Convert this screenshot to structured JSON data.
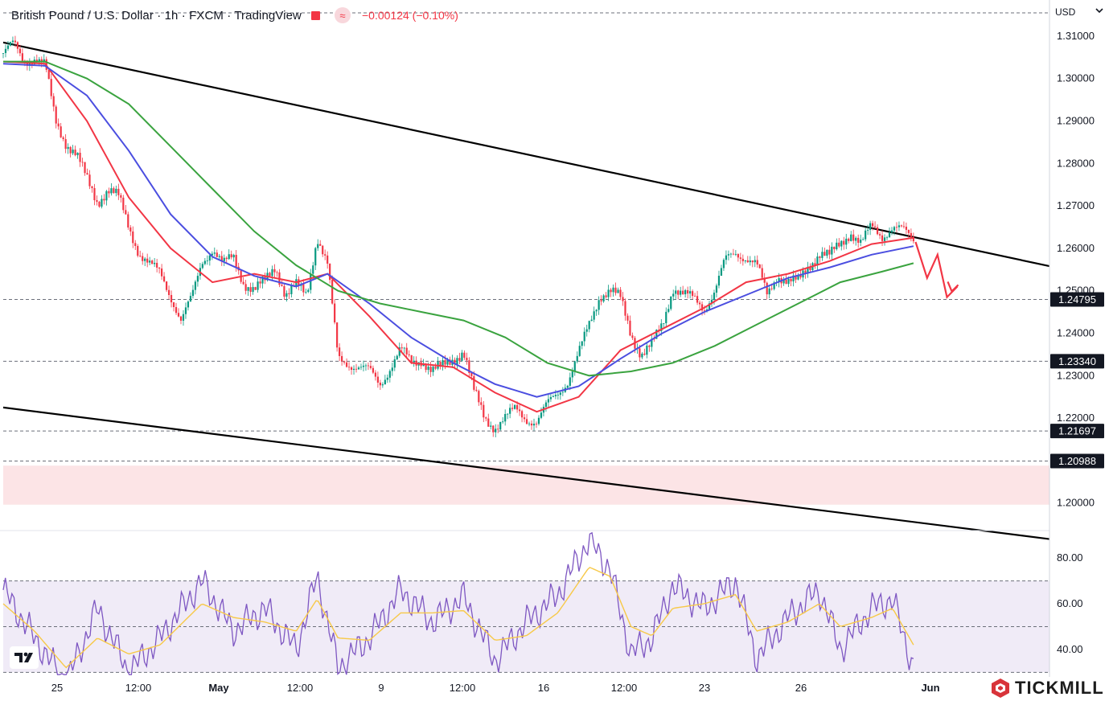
{
  "header": {
    "title": "British Pound / U.S. Dollar · 1h · FXCM · TradingView",
    "change": "−0.00124 (−0.10%)",
    "approx_symbol": "≈"
  },
  "currency": "USD",
  "brand": "TICKMILL",
  "chart_data": [
    {
      "type": "candlestick",
      "title": "British Pound / U.S. Dollar · 1h · FXCM · TradingView",
      "ylim": [
        1.1935,
        1.3185
      ],
      "y_ticks": [
        "1.31000",
        "1.30000",
        "1.29000",
        "1.28000",
        "1.27000",
        "1.26000",
        "1.25000",
        "1.24000",
        "1.23000",
        "1.22000",
        "1.20000"
      ],
      "x_ticks": [
        "25",
        "12:00",
        "May",
        "12:00",
        "9",
        "12:00",
        "16",
        "12:00",
        "23",
        "26",
        "Jun"
      ],
      "price_levels": [
        {
          "label": "1.24795",
          "value": 1.24795
        },
        {
          "label": "1.23340",
          "value": 1.2334
        },
        {
          "label": "1.21697",
          "value": 1.21697
        },
        {
          "label": "1.20988",
          "value": 1.20988
        }
      ],
      "zone": {
        "from": 1.1996,
        "to": 1.2088,
        "color": "#fce4e6"
      },
      "channel": {
        "upper": [
          [
            0,
            1.3085
          ],
          [
            1.0,
            1.2558
          ]
        ],
        "lower": [
          [
            0,
            1.2225
          ],
          [
            1.0,
            1.1915
          ]
        ]
      },
      "close_path": [
        [
          0,
          1.306
        ],
        [
          0.01,
          1.308
        ],
        [
          0.02,
          1.304
        ],
        [
          0.03,
          1.305
        ],
        [
          0.04,
          1.303
        ],
        [
          0.05,
          1.29
        ],
        [
          0.06,
          1.285
        ],
        [
          0.07,
          1.282
        ],
        [
          0.08,
          1.276
        ],
        [
          0.09,
          1.271
        ],
        [
          0.1,
          1.274
        ],
        [
          0.11,
          1.272
        ],
        [
          0.12,
          1.265
        ],
        [
          0.13,
          1.259
        ],
        [
          0.14,
          1.256
        ],
        [
          0.15,
          1.254
        ],
        [
          0.16,
          1.249
        ],
        [
          0.17,
          1.243
        ],
        [
          0.18,
          1.248
        ],
        [
          0.19,
          1.257
        ],
        [
          0.2,
          1.26
        ],
        [
          0.21,
          1.256
        ],
        [
          0.22,
          1.258
        ],
        [
          0.23,
          1.252
        ],
        [
          0.24,
          1.25
        ],
        [
          0.25,
          1.252
        ],
        [
          0.26,
          1.256
        ],
        [
          0.27,
          1.249
        ],
        [
          0.28,
          1.251
        ],
        [
          0.29,
          1.249
        ],
        [
          0.3,
          1.263
        ],
        [
          0.31,
          1.256
        ],
        [
          0.32,
          1.234
        ],
        [
          0.33,
          1.233
        ],
        [
          0.34,
          1.232
        ],
        [
          0.35,
          1.231
        ],
        [
          0.36,
          1.228
        ],
        [
          0.37,
          1.232
        ],
        [
          0.38,
          1.236
        ],
        [
          0.39,
          1.233
        ],
        [
          0.4,
          1.234
        ],
        [
          0.41,
          1.231
        ],
        [
          0.42,
          1.232
        ],
        [
          0.43,
          1.234
        ],
        [
          0.44,
          1.236
        ],
        [
          0.45,
          1.226
        ],
        [
          0.46,
          1.22
        ],
        [
          0.47,
          1.218
        ],
        [
          0.48,
          1.22
        ],
        [
          0.49,
          1.222
        ],
        [
          0.5,
          1.22
        ],
        [
          0.51,
          1.219
        ],
        [
          0.52,
          1.223
        ],
        [
          0.53,
          1.226
        ],
        [
          0.54,
          1.229
        ],
        [
          0.55,
          1.235
        ],
        [
          0.56,
          1.242
        ],
        [
          0.57,
          1.249
        ],
        [
          0.58,
          1.25
        ],
        [
          0.59,
          1.248
        ],
        [
          0.6,
          1.24
        ],
        [
          0.61,
          1.235
        ],
        [
          0.62,
          1.237
        ],
        [
          0.63,
          1.242
        ],
        [
          0.64,
          1.251
        ],
        [
          0.65,
          1.249
        ],
        [
          0.66,
          1.248
        ],
        [
          0.67,
          1.246
        ],
        [
          0.68,
          1.25
        ],
        [
          0.69,
          1.257
        ],
        [
          0.7,
          1.259
        ],
        [
          0.71,
          1.258
        ],
        [
          0.72,
          1.256
        ],
        [
          0.73,
          1.249
        ],
        [
          0.74,
          1.254
        ],
        [
          0.75,
          1.252
        ],
        [
          0.76,
          1.252
        ],
        [
          0.77,
          1.256
        ],
        [
          0.78,
          1.259
        ],
        [
          0.79,
          1.258
        ],
        [
          0.8,
          1.261
        ],
        [
          0.81,
          1.264
        ],
        [
          0.82,
          1.261
        ],
        [
          0.83,
          1.265
        ],
        [
          0.84,
          1.263
        ],
        [
          0.85,
          1.265
        ],
        [
          0.86,
          1.264
        ],
        [
          0.87,
          1.262
        ]
      ],
      "forecast_arrow": [
        [
          0.872,
          1.2615
        ],
        [
          0.883,
          1.253
        ],
        [
          0.893,
          1.2585
        ],
        [
          0.902,
          1.2485
        ],
        [
          0.912,
          1.251
        ]
      ],
      "series": [
        {
          "name": "",
          "color": "#f23645",
          "values": [
            [
              0,
              1.304
            ],
            [
              0.04,
              1.3035
            ],
            [
              0.08,
              1.29
            ],
            [
              0.12,
              1.272
            ],
            [
              0.16,
              1.26
            ],
            [
              0.2,
              1.252
            ],
            [
              0.24,
              1.254
            ],
            [
              0.28,
              1.252
            ],
            [
              0.31,
              1.254
            ],
            [
              0.35,
              1.244
            ],
            [
              0.39,
              1.233
            ],
            [
              0.43,
              1.232
            ],
            [
              0.47,
              1.226
            ],
            [
              0.51,
              1.2215
            ],
            [
              0.55,
              1.225
            ],
            [
              0.59,
              1.236
            ],
            [
              0.63,
              1.241
            ],
            [
              0.67,
              1.246
            ],
            [
              0.71,
              1.252
            ],
            [
              0.75,
              1.254
            ],
            [
              0.79,
              1.257
            ],
            [
              0.83,
              1.261
            ],
            [
              0.87,
              1.2625
            ]
          ]
        },
        {
          "name": "",
          "color": "#4b4ee0",
          "values": [
            [
              0,
              1.3035
            ],
            [
              0.04,
              1.303
            ],
            [
              0.08,
              1.296
            ],
            [
              0.12,
              1.283
            ],
            [
              0.16,
              1.268
            ],
            [
              0.2,
              1.258
            ],
            [
              0.24,
              1.2535
            ],
            [
              0.28,
              1.251
            ],
            [
              0.31,
              1.254
            ],
            [
              0.35,
              1.247
            ],
            [
              0.39,
              1.239
            ],
            [
              0.43,
              1.233
            ],
            [
              0.47,
              1.228
            ],
            [
              0.51,
              1.225
            ],
            [
              0.55,
              1.2275
            ],
            [
              0.59,
              1.234
            ],
            [
              0.63,
              1.24
            ],
            [
              0.67,
              1.245
            ],
            [
              0.71,
              1.249
            ],
            [
              0.75,
              1.253
            ],
            [
              0.79,
              1.2555
            ],
            [
              0.83,
              1.2585
            ],
            [
              0.87,
              1.2605
            ]
          ]
        },
        {
          "name": "",
          "color": "#3aa33f",
          "values": [
            [
              0,
              1.304
            ],
            [
              0.04,
              1.304
            ],
            [
              0.08,
              1.3
            ],
            [
              0.12,
              1.294
            ],
            [
              0.16,
              1.284
            ],
            [
              0.2,
              1.274
            ],
            [
              0.24,
              1.264
            ],
            [
              0.28,
              1.256
            ],
            [
              0.32,
              1.25
            ],
            [
              0.36,
              1.247
            ],
            [
              0.4,
              1.245
            ],
            [
              0.44,
              1.243
            ],
            [
              0.48,
              1.239
            ],
            [
              0.52,
              1.233
            ],
            [
              0.56,
              1.23
            ],
            [
              0.6,
              1.231
            ],
            [
              0.64,
              1.233
            ],
            [
              0.68,
              1.237
            ],
            [
              0.72,
              1.242
            ],
            [
              0.76,
              1.247
            ],
            [
              0.8,
              1.252
            ],
            [
              0.84,
              1.2545
            ],
            [
              0.87,
              1.2565
            ]
          ]
        }
      ]
    },
    {
      "type": "line",
      "ylim": [
        28,
        92
      ],
      "y_ticks": [
        "80.00",
        "60.00",
        "40.00"
      ],
      "levels": [
        70,
        50,
        30
      ],
      "series": [
        {
          "name": "",
          "color": "#7e57c2",
          "values": [
            [
              0,
              66
            ],
            [
              0.03,
              45
            ],
            [
              0.06,
              25
            ],
            [
              0.09,
              58
            ],
            [
              0.12,
              30
            ],
            [
              0.15,
              45
            ],
            [
              0.19,
              70
            ],
            [
              0.22,
              48
            ],
            [
              0.25,
              58
            ],
            [
              0.28,
              40
            ],
            [
              0.3,
              72
            ],
            [
              0.32,
              32
            ],
            [
              0.35,
              45
            ],
            [
              0.38,
              66
            ],
            [
              0.41,
              52
            ],
            [
              0.44,
              63
            ],
            [
              0.47,
              35
            ],
            [
              0.5,
              52
            ],
            [
              0.53,
              64
            ],
            [
              0.56,
              88
            ],
            [
              0.58,
              75
            ],
            [
              0.6,
              38
            ],
            [
              0.62,
              45
            ],
            [
              0.64,
              68
            ],
            [
              0.67,
              58
            ],
            [
              0.7,
              70
            ],
            [
              0.72,
              36
            ],
            [
              0.75,
              54
            ],
            [
              0.78,
              66
            ],
            [
              0.8,
              40
            ],
            [
              0.83,
              58
            ],
            [
              0.85,
              62
            ],
            [
              0.87,
              32
            ]
          ]
        },
        {
          "name": "",
          "color": "#f7c948",
          "values": [
            [
              0,
              60
            ],
            [
              0.03,
              48
            ],
            [
              0.06,
              32
            ],
            [
              0.09,
              45
            ],
            [
              0.12,
              38
            ],
            [
              0.15,
              42
            ],
            [
              0.19,
              60
            ],
            [
              0.22,
              54
            ],
            [
              0.25,
              52
            ],
            [
              0.28,
              48
            ],
            [
              0.3,
              62
            ],
            [
              0.32,
              45
            ],
            [
              0.35,
              44
            ],
            [
              0.38,
              56
            ],
            [
              0.41,
              56
            ],
            [
              0.44,
              57
            ],
            [
              0.47,
              44
            ],
            [
              0.5,
              46
            ],
            [
              0.53,
              56
            ],
            [
              0.56,
              76
            ],
            [
              0.58,
              72
            ],
            [
              0.6,
              50
            ],
            [
              0.62,
              46
            ],
            [
              0.64,
              58
            ],
            [
              0.67,
              60
            ],
            [
              0.7,
              64
            ],
            [
              0.72,
              48
            ],
            [
              0.75,
              52
            ],
            [
              0.78,
              60
            ],
            [
              0.8,
              50
            ],
            [
              0.83,
              54
            ],
            [
              0.85,
              58
            ],
            [
              0.87,
              42
            ]
          ]
        }
      ]
    }
  ]
}
